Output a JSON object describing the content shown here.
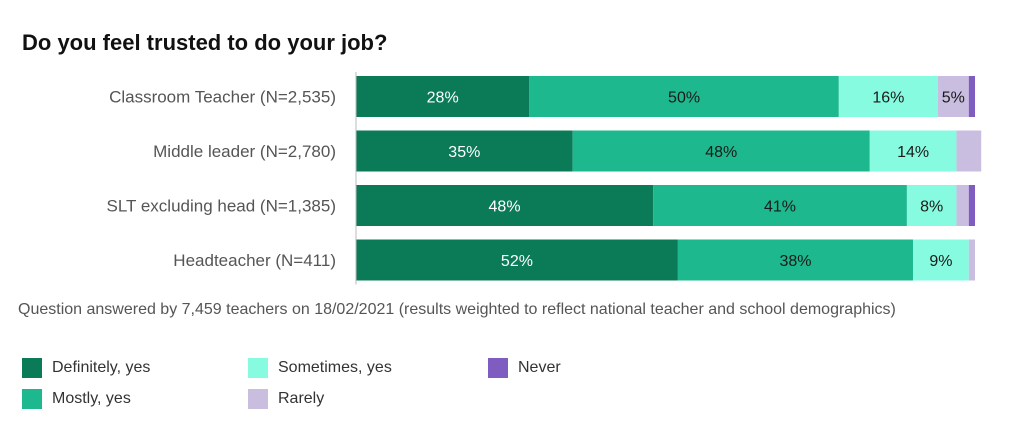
{
  "title": "Do you feel trusted to do your job?",
  "note": "Question answered by 7,459 teachers on 18/02/2021 (results weighted to reflect national teacher and school demographics)",
  "chart_data": {
    "type": "bar",
    "orientation": "horizontal",
    "stacked": true,
    "title": "Do you feel trusted to do your job?",
    "categories": [
      "Classroom Teacher  (N=2,535)",
      "Middle leader  (N=2,780)",
      "SLT excluding head  (N=1,385)",
      "Headteacher   (N=411)"
    ],
    "series": [
      {
        "name": "Definitely, yes",
        "color": "#0b7a57",
        "label_color": "#ffffff",
        "values": [
          28,
          35,
          48,
          52
        ],
        "labels": [
          "28%",
          "35%",
          "48%",
          "52%"
        ]
      },
      {
        "name": "Mostly, yes",
        "color": "#1db88e",
        "label_color": "#1a1a1a",
        "values": [
          50,
          48,
          41,
          38
        ],
        "labels": [
          "50%",
          "48%",
          "41%",
          "38%"
        ]
      },
      {
        "name": "Sometimes, yes",
        "color": "#86fbe0",
        "label_color": "#1a1a1a",
        "values": [
          16,
          14,
          8,
          9
        ],
        "labels": [
          "16%",
          "14%",
          "8%",
          "9%"
        ]
      },
      {
        "name": "Rarely",
        "color": "#c9bde0",
        "label_color": "#1a1a1a",
        "values": [
          5,
          4,
          2,
          1
        ],
        "labels": [
          "5%",
          "",
          "",
          ""
        ]
      },
      {
        "name": "Never",
        "color": "#7e5cc0",
        "label_color": "#1a1a1a",
        "values": [
          1,
          0,
          1,
          0
        ],
        "labels": [
          "",
          "",
          "",
          ""
        ]
      }
    ],
    "xlim": [
      0,
      100
    ]
  },
  "legend": [
    {
      "label": "Definitely, yes",
      "color": "#0b7a57"
    },
    {
      "label": "Mostly, yes",
      "color": "#1db88e"
    },
    {
      "label": "Sometimes, yes",
      "color": "#86fbe0"
    },
    {
      "label": "Rarely",
      "color": "#c9bde0"
    },
    {
      "label": "Never",
      "color": "#7e5cc0"
    }
  ]
}
